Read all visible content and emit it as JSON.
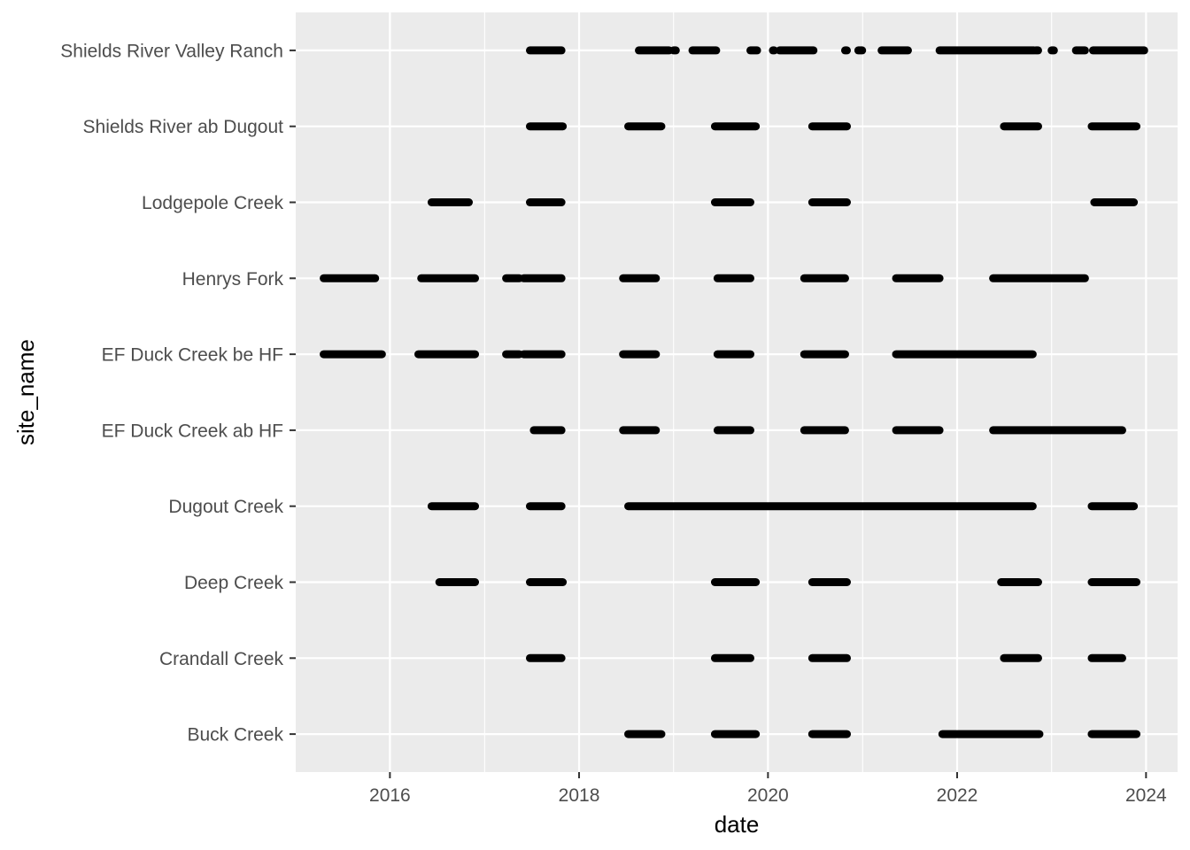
{
  "chart_data": {
    "type": "scatter",
    "xlabel": "date",
    "ylabel": "site_name",
    "xlim": [
      "2015-01-02",
      "2024-05-02"
    ],
    "x_ticks": [
      "2016",
      "2018",
      "2020",
      "2022",
      "2024"
    ],
    "grid": true,
    "background": "#ebebeb",
    "point_color": "#000000",
    "categories": [
      "Buck Creek",
      "Crandall Creek",
      "Deep Creek",
      "Dugout Creek",
      "EF Duck Creek ab HF",
      "EF Duck Creek be HF",
      "Henrys Fork",
      "Lodgepole Creek",
      "Shields River ab Dugout",
      "Shields River Valley Ranch"
    ],
    "series": [
      {
        "site": "Buck Creek",
        "date_ranges": [
          [
            "2018-07-10",
            "2018-11-15"
          ],
          [
            "2019-06-10",
            "2019-11-15"
          ],
          [
            "2020-06-20",
            "2020-11-01"
          ],
          [
            "2021-11-05",
            "2022-11-15"
          ],
          [
            "2023-06-05",
            "2023-11-25"
          ]
        ]
      },
      {
        "site": "Crandall Creek",
        "date_ranges": [
          [
            "2017-06-25",
            "2017-10-25"
          ],
          [
            "2019-06-10",
            "2019-10-25"
          ],
          [
            "2020-06-20",
            "2020-11-01"
          ],
          [
            "2022-07-01",
            "2022-11-10"
          ],
          [
            "2023-06-05",
            "2023-10-01"
          ]
        ]
      },
      {
        "site": "Deep Creek",
        "date_ranges": [
          [
            "2016-07-10",
            "2016-11-25"
          ],
          [
            "2017-06-25",
            "2017-10-30"
          ],
          [
            "2019-06-10",
            "2019-11-15"
          ],
          [
            "2020-06-20",
            "2020-11-01"
          ],
          [
            "2022-06-20",
            "2022-11-10"
          ],
          [
            "2023-06-05",
            "2023-11-25"
          ]
        ]
      },
      {
        "site": "Dugout Creek",
        "date_ranges": [
          [
            "2016-06-10",
            "2016-11-25"
          ],
          [
            "2017-06-25",
            "2017-10-25"
          ],
          [
            "2018-07-10",
            "2022-10-20"
          ],
          [
            "2023-06-05",
            "2023-11-15"
          ]
        ]
      },
      {
        "site": "EF Duck Creek ab HF",
        "date_ranges": [
          [
            "2017-07-10",
            "2017-10-25"
          ],
          [
            "2018-06-20",
            "2018-10-25"
          ],
          [
            "2019-06-20",
            "2019-10-25"
          ],
          [
            "2020-05-20",
            "2020-10-25"
          ],
          [
            "2021-05-10",
            "2021-10-25"
          ],
          [
            "2022-05-20",
            "2023-10-01"
          ]
        ]
      },
      {
        "site": "EF Duck Creek be HF",
        "date_ranges": [
          [
            "2015-04-20",
            "2015-12-01"
          ],
          [
            "2016-04-20",
            "2016-11-25"
          ],
          [
            "2017-03-25",
            "2017-05-15"
          ],
          [
            "2017-06-01",
            "2017-10-25"
          ],
          [
            "2018-06-20",
            "2018-10-25"
          ],
          [
            "2019-06-20",
            "2019-10-25"
          ],
          [
            "2020-05-20",
            "2020-10-25"
          ],
          [
            "2021-05-10",
            "2022-10-20"
          ]
        ]
      },
      {
        "site": "Henrys Fork",
        "date_ranges": [
          [
            "2015-04-20",
            "2015-11-05"
          ],
          [
            "2016-05-01",
            "2016-11-25"
          ],
          [
            "2017-03-25",
            "2017-05-15"
          ],
          [
            "2017-06-01",
            "2017-10-25"
          ],
          [
            "2018-06-20",
            "2018-10-25"
          ],
          [
            "2019-06-20",
            "2019-10-25"
          ],
          [
            "2020-05-20",
            "2020-10-25"
          ],
          [
            "2021-05-10",
            "2021-10-25"
          ],
          [
            "2022-05-20",
            "2023-05-10"
          ]
        ]
      },
      {
        "site": "Lodgepole Creek",
        "date_ranges": [
          [
            "2016-06-10",
            "2016-11-01"
          ],
          [
            "2017-06-25",
            "2017-10-25"
          ],
          [
            "2019-06-10",
            "2019-10-25"
          ],
          [
            "2020-06-20",
            "2020-11-01"
          ],
          [
            "2023-06-15",
            "2023-11-15"
          ]
        ]
      },
      {
        "site": "Shields River ab Dugout",
        "date_ranges": [
          [
            "2017-06-25",
            "2017-10-30"
          ],
          [
            "2018-07-10",
            "2018-11-15"
          ],
          [
            "2019-06-10",
            "2019-11-15"
          ],
          [
            "2020-06-20",
            "2020-11-01"
          ],
          [
            "2022-07-01",
            "2022-11-10"
          ],
          [
            "2023-06-05",
            "2023-11-25"
          ]
        ]
      },
      {
        "site": "Shields River Valley Ranch",
        "date_ranges": [
          [
            "2017-06-25",
            "2017-10-25"
          ],
          [
            "2018-08-20",
            "2018-12-15"
          ],
          [
            "2019-01-01",
            "2019-01-10"
          ],
          [
            "2019-03-15",
            "2019-06-15"
          ],
          [
            "2019-10-25",
            "2019-11-20"
          ],
          [
            "2020-01-20",
            "2020-01-25"
          ],
          [
            "2020-02-15",
            "2020-06-25"
          ],
          [
            "2020-10-25",
            "2020-11-01"
          ],
          [
            "2020-12-15",
            "2020-12-30"
          ],
          [
            "2021-03-15",
            "2021-06-25"
          ],
          [
            "2021-10-25",
            "2022-10-25"
          ],
          [
            "2022-11-01",
            "2022-11-10"
          ],
          [
            "2023-01-01",
            "2023-01-10"
          ],
          [
            "2023-04-05",
            "2023-05-10"
          ],
          [
            "2023-06-10",
            "2023-12-25"
          ]
        ]
      }
    ]
  }
}
